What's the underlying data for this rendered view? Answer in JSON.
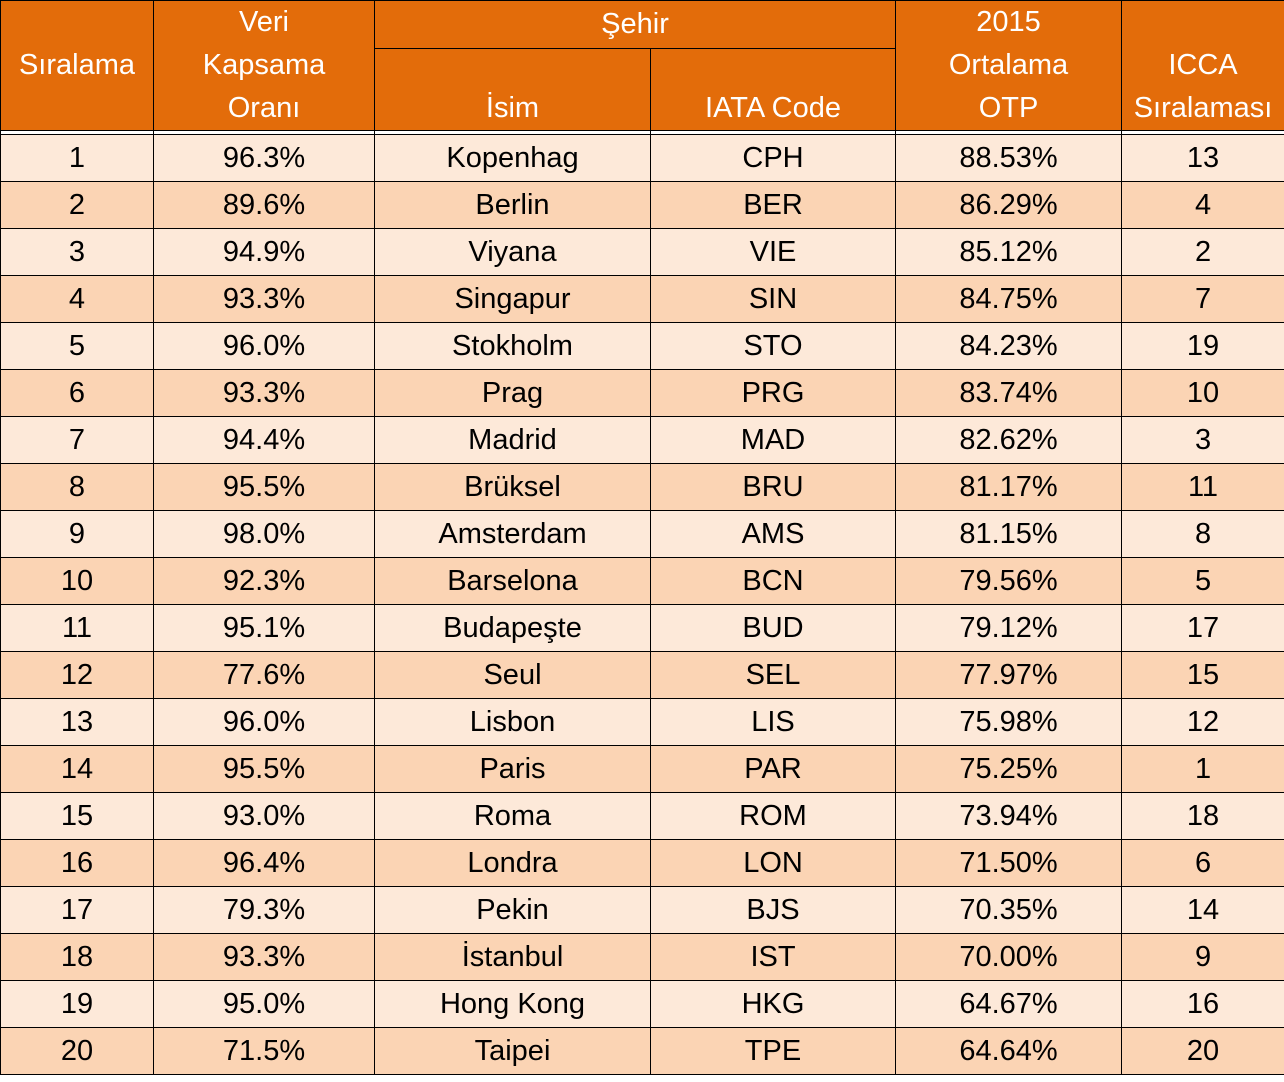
{
  "headers": {
    "rank": "Sıralama",
    "coverage": [
      "Veri",
      "Kapsama",
      "Oranı"
    ],
    "city_group": "Şehir",
    "name": "İsim",
    "iata": "IATA Code",
    "otp": [
      "2015",
      "Ortalama",
      "OTP"
    ],
    "icca": [
      "ICCA",
      "Sıralaması"
    ]
  },
  "rows": [
    {
      "rank": "1",
      "coverage": "96.3%",
      "name": "Kopenhag",
      "iata": "CPH",
      "otp": "88.53%",
      "icca": "13"
    },
    {
      "rank": "2",
      "coverage": "89.6%",
      "name": "Berlin",
      "iata": "BER",
      "otp": "86.29%",
      "icca": "4"
    },
    {
      "rank": "3",
      "coverage": "94.9%",
      "name": "Viyana",
      "iata": "VIE",
      "otp": "85.12%",
      "icca": "2"
    },
    {
      "rank": "4",
      "coverage": "93.3%",
      "name": "Singapur",
      "iata": "SIN",
      "otp": "84.75%",
      "icca": "7"
    },
    {
      "rank": "5",
      "coverage": "96.0%",
      "name": "Stokholm",
      "iata": "STO",
      "otp": "84.23%",
      "icca": "19"
    },
    {
      "rank": "6",
      "coverage": "93.3%",
      "name": "Prag",
      "iata": "PRG",
      "otp": "83.74%",
      "icca": "10"
    },
    {
      "rank": "7",
      "coverage": "94.4%",
      "name": "Madrid",
      "iata": "MAD",
      "otp": "82.62%",
      "icca": "3"
    },
    {
      "rank": "8",
      "coverage": "95.5%",
      "name": "Brüksel",
      "iata": "BRU",
      "otp": "81.17%",
      "icca": "11"
    },
    {
      "rank": "9",
      "coverage": "98.0%",
      "name": "Amsterdam",
      "iata": "AMS",
      "otp": "81.15%",
      "icca": "8"
    },
    {
      "rank": "10",
      "coverage": "92.3%",
      "name": "Barselona",
      "iata": "BCN",
      "otp": "79.56%",
      "icca": "5"
    },
    {
      "rank": "11",
      "coverage": "95.1%",
      "name": "Budapeşte",
      "iata": "BUD",
      "otp": "79.12%",
      "icca": "17"
    },
    {
      "rank": "12",
      "coverage": "77.6%",
      "name": "Seul",
      "iata": "SEL",
      "otp": "77.97%",
      "icca": "15"
    },
    {
      "rank": "13",
      "coverage": "96.0%",
      "name": "Lisbon",
      "iata": "LIS",
      "otp": "75.98%",
      "icca": "12"
    },
    {
      "rank": "14",
      "coverage": "95.5%",
      "name": "Paris",
      "iata": "PAR",
      "otp": "75.25%",
      "icca": "1"
    },
    {
      "rank": "15",
      "coverage": "93.0%",
      "name": "Roma",
      "iata": "ROM",
      "otp": "73.94%",
      "icca": "18"
    },
    {
      "rank": "16",
      "coverage": "96.4%",
      "name": "Londra",
      "iata": "LON",
      "otp": "71.50%",
      "icca": "6"
    },
    {
      "rank": "17",
      "coverage": "79.3%",
      "name": "Pekin",
      "iata": "BJS",
      "otp": "70.35%",
      "icca": "14"
    },
    {
      "rank": "18",
      "coverage": "93.3%",
      "name": "İstanbul",
      "iata": "IST",
      "otp": "70.00%",
      "icca": "9"
    },
    {
      "rank": "19",
      "coverage": "95.0%",
      "name": "Hong Kong",
      "iata": "HKG",
      "otp": "64.67%",
      "icca": "16"
    },
    {
      "rank": "20",
      "coverage": "71.5%",
      "name": "Taipei",
      "iata": "TPE",
      "otp": "64.64%",
      "icca": "20"
    }
  ]
}
